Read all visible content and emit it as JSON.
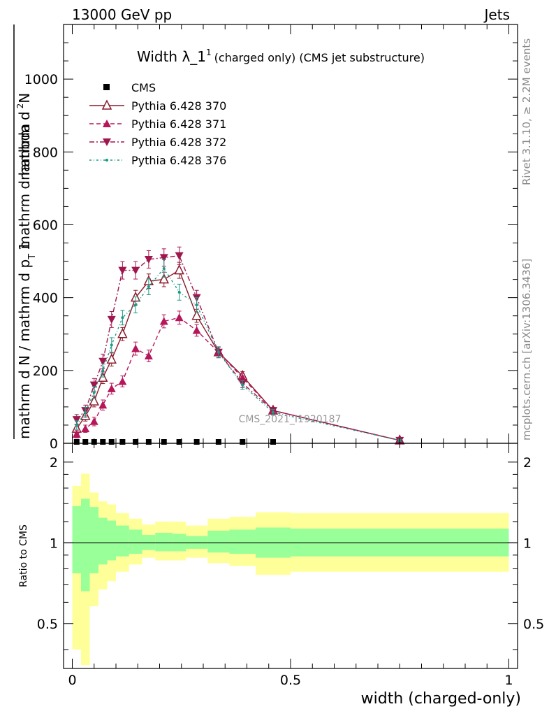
{
  "header": {
    "left": "13000 GeV pp",
    "right": "Jets"
  },
  "side_labels": {
    "rivet": "Rivet 3.1.10, ≥ 2.2M events",
    "mcplots": "mcplots.cern.ch [arXiv:1306.3436]"
  },
  "chart_data": [
    {
      "type": "line",
      "panel": "main",
      "title_main": "Width λ_1",
      "title_sup": "1",
      "title_rest": "(charged only) (CMS jet substructure)",
      "watermark": "CMS_2021_I1920187",
      "ylabel_num": "1",
      "ylabel_den": "mathrm d N / mathrm d p",
      "ylabel_sub": "T",
      "ylabel_den2": "mathrm d lambda",
      "ylabel_numer": "mathrm d",
      "ylabel_numer2": "N",
      "ylabel_numer_sup": "2",
      "ylabel_numer_tail": "mathrm d p",
      "ylabel_numer_sub": "T",
      "ylabel_numer_end": "mathrm d lambda",
      "xlim": [
        -0.02,
        1.02
      ],
      "ylim": [
        0,
        1150
      ],
      "yticks": [
        0,
        200,
        400,
        600,
        800,
        1000
      ],
      "ytick_labels": [
        "0",
        "200",
        "400",
        "600",
        "800",
        "1000"
      ],
      "legend_position": "top-left",
      "series": [
        {
          "name": "CMS",
          "color": "#000000",
          "marker": "square",
          "x": [
            0.01,
            0.03,
            0.05,
            0.07,
            0.09,
            0.115,
            0.145,
            0.175,
            0.21,
            0.245,
            0.285,
            0.335,
            0.39,
            0.46
          ],
          "y": [
            2,
            2,
            2,
            2,
            2,
            2,
            2,
            2,
            2,
            2,
            2,
            2,
            2,
            2
          ]
        },
        {
          "name": "Pythia 6.428 370",
          "color": "#8b1a2b",
          "marker": "triangle-up-open",
          "dash": "solid",
          "x": [
            0.01,
            0.03,
            0.05,
            0.07,
            0.09,
            0.115,
            0.145,
            0.175,
            0.21,
            0.245,
            0.285,
            0.335,
            0.39,
            0.46,
            0.75
          ],
          "y": [
            40,
            75,
            115,
            180,
            230,
            300,
            400,
            445,
            450,
            475,
            350,
            250,
            185,
            90,
            8
          ],
          "err": [
            12,
            14,
            15,
            16,
            18,
            18,
            20,
            20,
            20,
            22,
            18,
            15,
            12,
            8,
            3
          ]
        },
        {
          "name": "Pythia 6.428 371",
          "color": "#b5175a",
          "marker": "triangle-up",
          "dash": "6,4",
          "x": [
            0.01,
            0.03,
            0.05,
            0.07,
            0.09,
            0.115,
            0.145,
            0.175,
            0.21,
            0.245,
            0.285,
            0.335,
            0.39,
            0.46,
            0.75
          ],
          "y": [
            25,
            40,
            60,
            105,
            150,
            170,
            260,
            240,
            335,
            345,
            310,
            250,
            180,
            90,
            8
          ],
          "err": [
            10,
            10,
            12,
            14,
            15,
            15,
            18,
            16,
            18,
            18,
            16,
            14,
            12,
            8,
            3
          ]
        },
        {
          "name": "Pythia 6.428 372",
          "color": "#a0174e",
          "marker": "triangle-down",
          "dash": "7,3,2,3",
          "x": [
            0.01,
            0.03,
            0.05,
            0.07,
            0.09,
            0.115,
            0.145,
            0.175,
            0.21,
            0.245,
            0.285,
            0.335,
            0.39,
            0.46,
            0.75
          ],
          "y": [
            65,
            90,
            160,
            225,
            340,
            475,
            475,
            505,
            510,
            515,
            400,
            250,
            165,
            90,
            8
          ],
          "err": [
            14,
            15,
            18,
            20,
            22,
            24,
            24,
            24,
            24,
            24,
            20,
            15,
            12,
            8,
            3
          ]
        },
        {
          "name": "Pythia 6.428 376",
          "color": "#1a9a86",
          "marker": "dot",
          "dash": "3,3,1,3",
          "x": [
            0.01,
            0.03,
            0.05,
            0.07,
            0.09,
            0.115,
            0.145,
            0.175,
            0.21,
            0.245,
            0.285,
            0.335,
            0.39,
            0.46,
            0.75
          ],
          "y": [
            50,
            85,
            140,
            200,
            270,
            345,
            380,
            430,
            480,
            415,
            380,
            250,
            160,
            85,
            8
          ],
          "err": [
            12,
            14,
            16,
            18,
            20,
            20,
            22,
            22,
            24,
            22,
            20,
            15,
            12,
            8,
            3
          ]
        }
      ]
    },
    {
      "type": "area",
      "panel": "ratio",
      "ylabel": "Ratio to CMS",
      "xlabel": "width (charged-only)",
      "ylim": [
        0.34,
        2.35
      ],
      "xlim": [
        -0.02,
        1.02
      ],
      "xticks": [
        0,
        0.5,
        1
      ],
      "xtick_labels": [
        "0",
        "0.5",
        "1"
      ],
      "ytick_labels_major": [
        "0.5",
        "1",
        "2"
      ],
      "ytick_values_major": [
        0.5,
        1,
        2
      ],
      "bins": [
        [
          0.0,
          0.02,
          0.77,
          1.37,
          0.4,
          1.63
        ],
        [
          0.02,
          0.04,
          0.66,
          1.46,
          0.35,
          1.81
        ],
        [
          0.04,
          0.06,
          0.77,
          1.36,
          0.58,
          1.54
        ],
        [
          0.06,
          0.08,
          0.83,
          1.24,
          0.67,
          1.43
        ],
        [
          0.08,
          0.1,
          0.86,
          1.21,
          0.72,
          1.39
        ],
        [
          0.1,
          0.13,
          0.89,
          1.16,
          0.78,
          1.29
        ],
        [
          0.13,
          0.16,
          0.91,
          1.12,
          0.83,
          1.23
        ],
        [
          0.16,
          0.19,
          0.94,
          1.07,
          0.88,
          1.17
        ],
        [
          0.19,
          0.23,
          0.93,
          1.09,
          0.86,
          1.2
        ],
        [
          0.23,
          0.26,
          0.93,
          1.08,
          0.86,
          1.2
        ],
        [
          0.26,
          0.31,
          0.95,
          1.06,
          0.88,
          1.16
        ],
        [
          0.31,
          0.36,
          0.92,
          1.11,
          0.84,
          1.23
        ],
        [
          0.36,
          0.42,
          0.91,
          1.12,
          0.82,
          1.25
        ],
        [
          0.42,
          0.5,
          0.88,
          1.14,
          0.76,
          1.3
        ],
        [
          0.5,
          1.0,
          0.89,
          1.13,
          0.78,
          1.29
        ]
      ],
      "band_colors": {
        "inner": "#99ff99",
        "outer": "#ffff99"
      }
    }
  ]
}
